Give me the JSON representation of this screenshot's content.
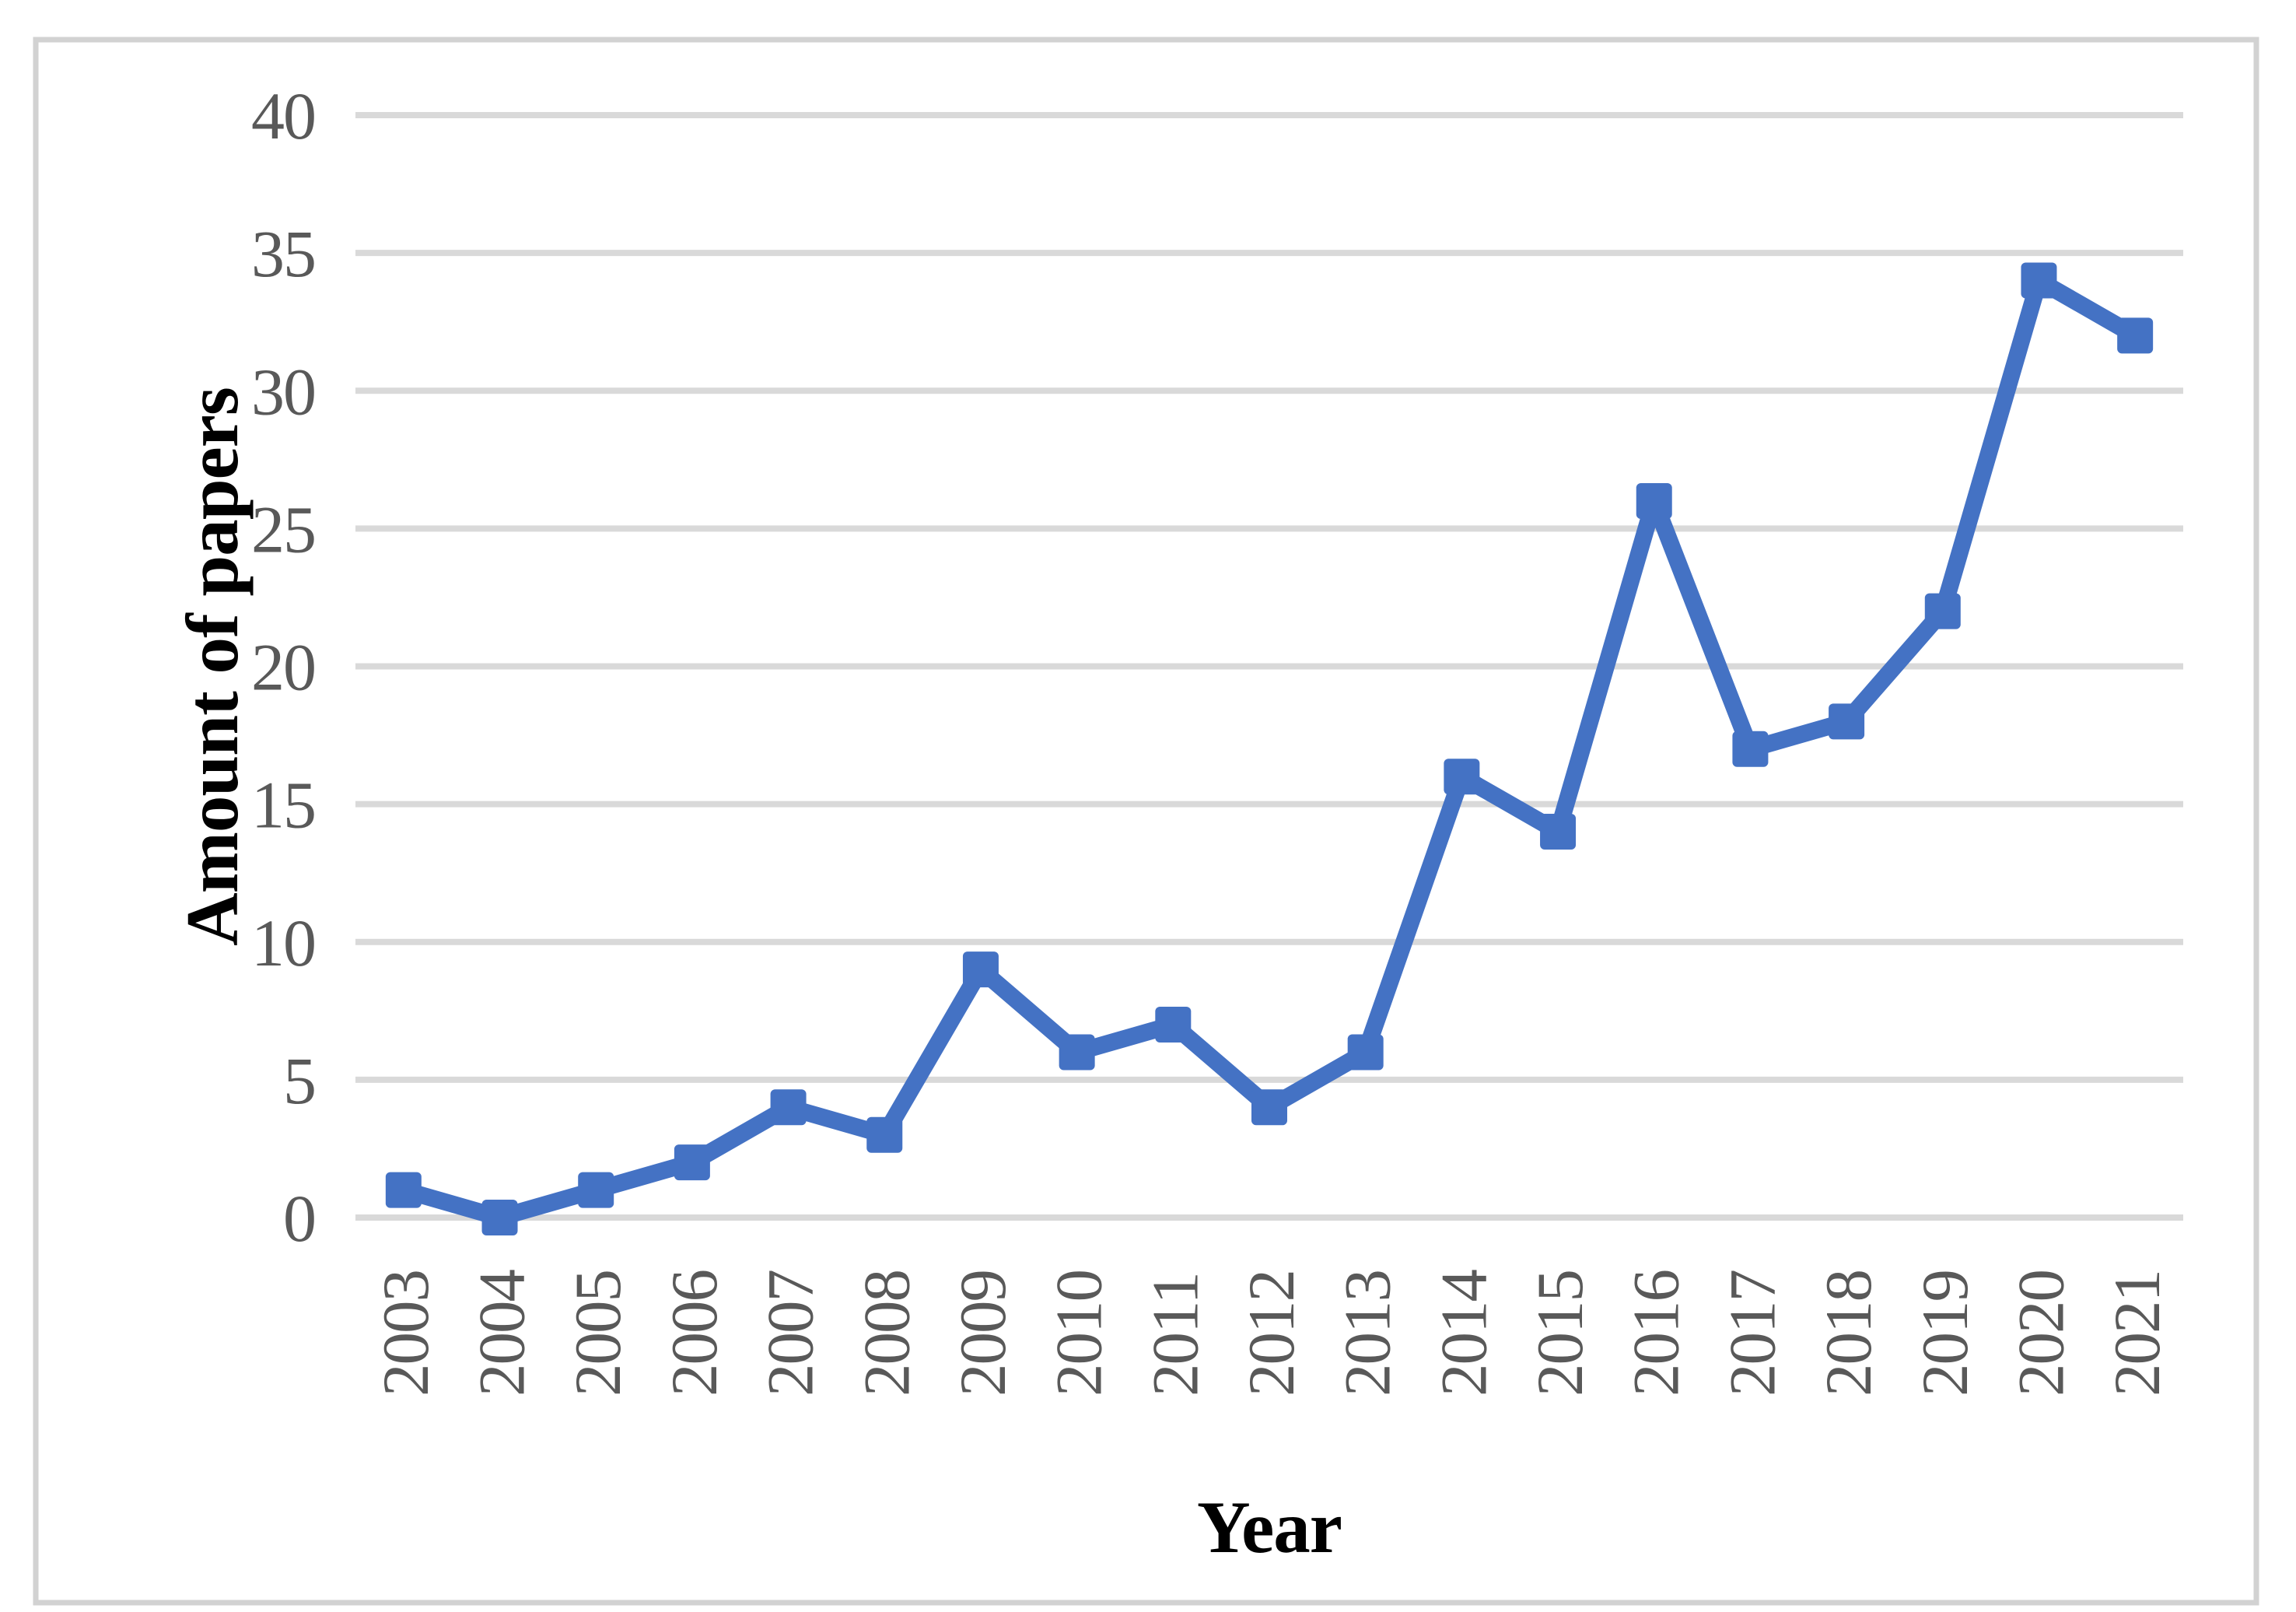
{
  "figure": {
    "background_color": "#ffffff",
    "border_color": "#d2d2d2"
  },
  "chart_data": {
    "type": "line",
    "title": "",
    "xlabel": "Year",
    "ylabel": "Amount of papers",
    "categories": [
      "2003",
      "2004",
      "2005",
      "2006",
      "2007",
      "2008",
      "2009",
      "2010",
      "2011",
      "2012",
      "2013",
      "2014",
      "2015",
      "2016",
      "2017",
      "2018",
      "2019",
      "2020",
      "2021"
    ],
    "values": [
      1,
      0,
      1,
      2,
      4,
      3,
      9,
      6,
      7,
      4,
      6,
      16,
      14,
      26,
      17,
      18,
      22,
      34,
      32
    ],
    "series_name": "Amount of papers",
    "yticks": [
      0,
      5,
      10,
      15,
      20,
      25,
      30,
      35,
      40
    ],
    "ylim": [
      0,
      40
    ],
    "grid": "horizontal",
    "legend_position": "none",
    "marker": "square",
    "line_color": "#4472c4",
    "marker_color": "#4472c4",
    "gridline_color": "#d9d9d9",
    "tick_label_color": "#595959",
    "axis_title_color": "#000000"
  }
}
